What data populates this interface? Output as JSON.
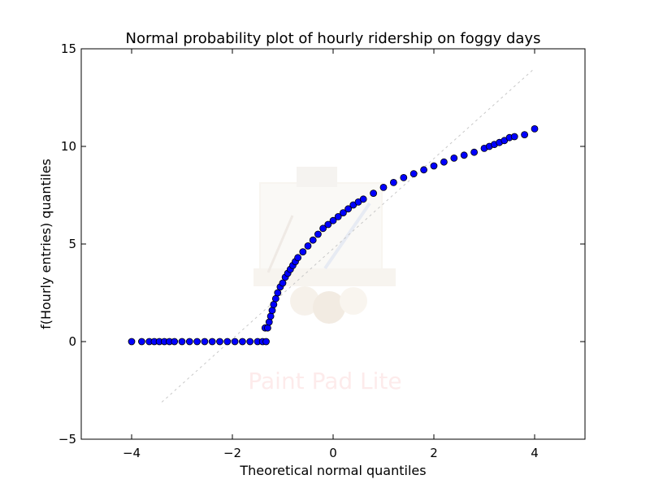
{
  "chart_data": {
    "type": "scatter",
    "title": "Normal probability plot of hourly ridership on foggy days",
    "xlabel": "Theoretical normal quantiles",
    "ylabel": "f(Hourly entries) quantiles",
    "xlim": [
      -5,
      5
    ],
    "ylim": [
      -5,
      15
    ],
    "x_ticks": [
      -4,
      -2,
      0,
      2,
      4
    ],
    "y_ticks": [
      -5,
      0,
      5,
      10,
      15
    ],
    "x_tick_labels": [
      "−4",
      "−2",
      "0",
      "2",
      "4"
    ],
    "y_tick_labels": [
      "−5",
      "0",
      "5",
      "10",
      "15"
    ],
    "grid": false,
    "marker_color": "#0000ff",
    "marker_edge_color": "#000000",
    "reference_line": {
      "x": [
        -3.4,
        4.0
      ],
      "y": [
        -3.1,
        14.0
      ],
      "color": "#c0c0c0"
    },
    "points": {
      "x": [
        -4.0,
        -3.8,
        -3.65,
        -3.55,
        -3.45,
        -3.35,
        -3.25,
        -3.15,
        -3.0,
        -2.85,
        -2.7,
        -2.55,
        -2.4,
        -2.25,
        -2.1,
        -1.95,
        -1.8,
        -1.65,
        -1.5,
        -1.4,
        -1.33,
        -1.35,
        -1.3,
        -1.27,
        -1.24,
        -1.21,
        -1.18,
        -1.14,
        -1.1,
        -1.05,
        -1.0,
        -0.95,
        -0.9,
        -0.85,
        -0.8,
        -0.75,
        -0.7,
        -0.6,
        -0.5,
        -0.4,
        -0.3,
        -0.2,
        -0.1,
        0.0,
        0.1,
        0.2,
        0.3,
        0.4,
        0.5,
        0.6,
        0.8,
        1.0,
        1.2,
        1.4,
        1.6,
        1.8,
        2.0,
        2.2,
        2.4,
        2.6,
        2.8,
        3.0,
        3.1,
        3.2,
        3.3,
        3.4,
        3.5,
        3.6,
        3.8,
        4.0
      ],
      "y": [
        0.0,
        0.0,
        0.0,
        0.0,
        0.0,
        0.0,
        0.0,
        0.0,
        0.0,
        0.0,
        0.0,
        0.0,
        0.0,
        0.0,
        0.0,
        0.0,
        0.0,
        0.0,
        0.0,
        0.0,
        0.0,
        0.7,
        0.7,
        1.0,
        1.3,
        1.6,
        1.9,
        2.2,
        2.5,
        2.8,
        3.0,
        3.3,
        3.5,
        3.7,
        3.9,
        4.1,
        4.3,
        4.6,
        4.9,
        5.2,
        5.5,
        5.8,
        6.0,
        6.2,
        6.4,
        6.6,
        6.8,
        7.0,
        7.15,
        7.3,
        7.6,
        7.9,
        8.15,
        8.4,
        8.6,
        8.8,
        9.0,
        9.2,
        9.4,
        9.55,
        9.7,
        9.9,
        10.0,
        10.1,
        10.2,
        10.3,
        10.45,
        10.5,
        10.6,
        10.9
      ]
    }
  },
  "watermark": {
    "text": "Paint Pad Lite"
  }
}
